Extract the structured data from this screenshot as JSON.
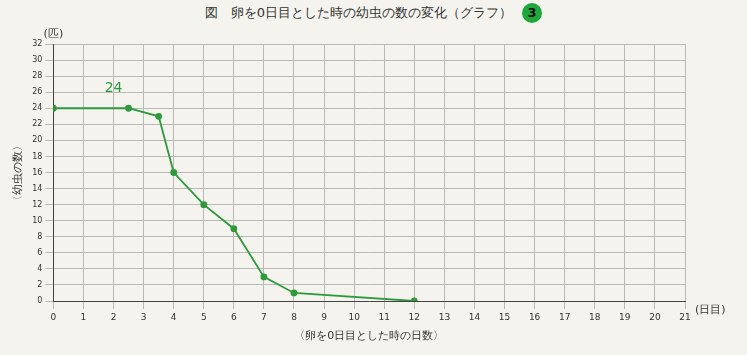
{
  "chart_data": {
    "type": "line",
    "title": "図　卵を0日目とした時の幼虫の数の変化（グラフ）",
    "title_mark": "3",
    "x_label": "〈卵を0日目とした時の日数〉",
    "y_label": "〈幼虫の数〉",
    "x_unit": "(日目)",
    "y_unit": "(匹)",
    "x": [
      0,
      2.5,
      3.5,
      4,
      5,
      6,
      7,
      8,
      12
    ],
    "values": [
      24,
      24,
      23,
      16,
      12,
      9,
      3,
      1,
      0
    ],
    "color": "#2e9a3c",
    "marker": "circle",
    "xlim": [
      0,
      21
    ],
    "xticks": [
      0,
      1,
      2,
      3,
      4,
      5,
      6,
      7,
      8,
      9,
      10,
      11,
      12,
      13,
      14,
      15,
      16,
      17,
      18,
      19,
      20,
      21
    ],
    "ylim": [
      0,
      32
    ],
    "yticks": [
      0,
      2,
      4,
      6,
      8,
      10,
      12,
      14,
      16,
      18,
      20,
      22,
      24,
      26,
      28,
      30,
      32
    ],
    "grid": true,
    "annotations": [
      {
        "text": "24",
        "x": 2,
        "y": 26.5
      }
    ]
  }
}
